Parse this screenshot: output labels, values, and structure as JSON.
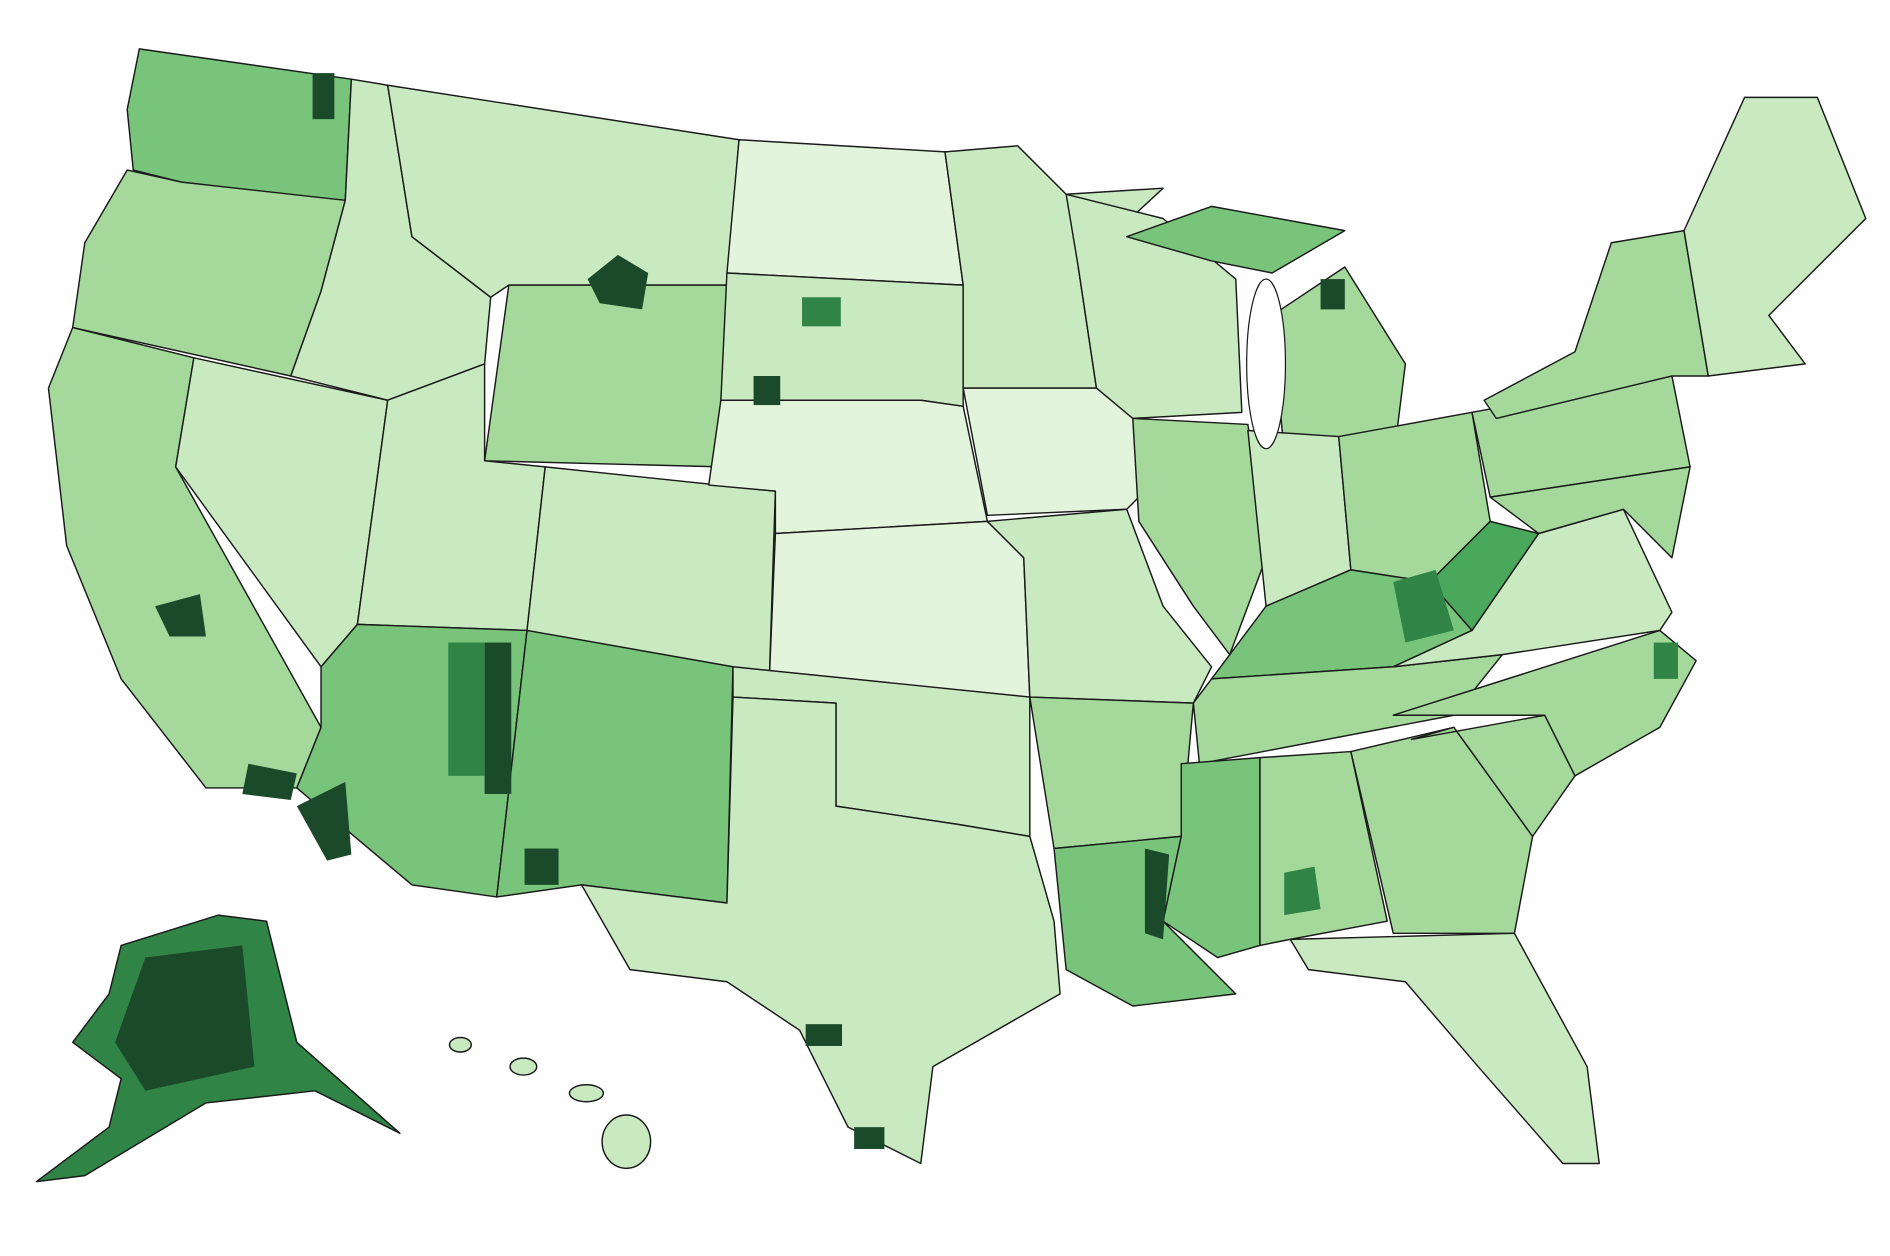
{
  "map": {
    "palette": [
      "#f4fbf1",
      "#e3f4dd",
      "#c9eac1",
      "#a4d99b",
      "#78c47a",
      "#4aa85c",
      "#2f8446",
      "#1b4a2a"
    ],
    "outline": "#1a1a1a",
    "background": "#ffffff"
  }
}
